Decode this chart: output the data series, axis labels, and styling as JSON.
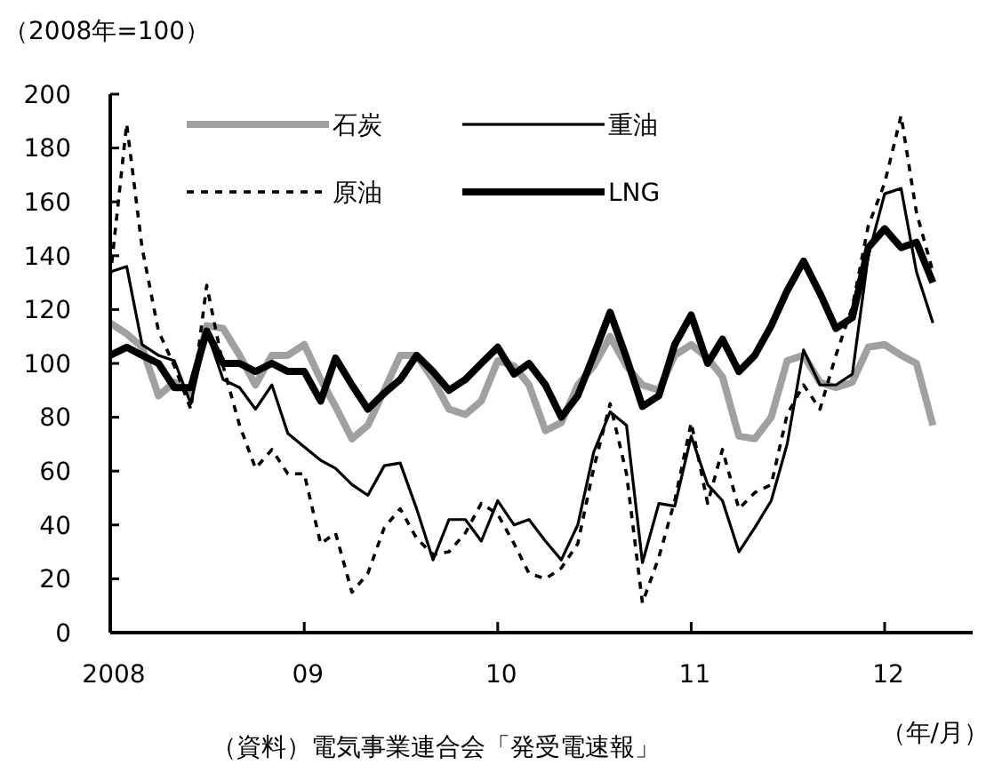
{
  "chart_data": {
    "type": "line",
    "ylabel": "（2008年=100）",
    "xlabel": "（年/月）",
    "annotations": [
      "（資料）電気事業連合会「発受電速報」"
    ],
    "x": [
      "2008-01",
      "2008-02",
      "2008-03",
      "2008-04",
      "2008-05",
      "2008-06",
      "2008-07",
      "2008-08",
      "2008-09",
      "2008-10",
      "2008-11",
      "2008-12",
      "2009-01",
      "2009-02",
      "2009-03",
      "2009-04",
      "2009-05",
      "2009-06",
      "2009-07",
      "2009-08",
      "2009-09",
      "2009-10",
      "2009-11",
      "2009-12",
      "2010-01",
      "2010-02",
      "2010-03",
      "2010-04",
      "2010-05",
      "2010-06",
      "2010-07",
      "2010-08",
      "2010-09",
      "2010-10",
      "2010-11",
      "2010-12",
      "2011-01",
      "2011-02",
      "2011-03",
      "2011-04",
      "2011-05",
      "2011-06",
      "2011-07",
      "2011-08",
      "2011-09",
      "2011-10",
      "2011-11",
      "2011-12",
      "2012-01",
      "2012-02",
      "2012-03",
      "2012-04"
    ],
    "xlim": [
      "2008-01",
      "2012-06-15"
    ],
    "xticks": [
      {
        "value": "2008-01",
        "label": "2008"
      },
      {
        "value": "2009-01",
        "label": "09"
      },
      {
        "value": "2010-01",
        "label": "10"
      },
      {
        "value": "2011-01",
        "label": "11"
      },
      {
        "value": "2012-01",
        "label": "12"
      }
    ],
    "ylim": [
      0,
      200
    ],
    "yticks": [
      0,
      20,
      40,
      60,
      80,
      100,
      120,
      140,
      160,
      180,
      200
    ],
    "grid": false,
    "legend": "top",
    "marker": "none",
    "series": [
      {
        "name": "石炭",
        "color": "#a0a0a0",
        "line_style": "solid",
        "values": [
          115,
          111,
          106,
          88,
          93,
          89,
          114,
          113,
          103,
          92,
          103,
          103,
          107,
          94,
          84,
          72,
          77,
          90,
          103,
          103,
          94,
          83,
          81,
          86,
          101,
          99,
          92,
          75,
          78,
          92,
          99,
          110,
          99,
          92,
          90,
          103,
          107,
          102,
          95,
          73,
          72,
          80,
          101,
          103,
          93,
          91,
          93,
          106,
          107,
          103,
          100,
          77
        ]
      },
      {
        "name": "重油",
        "color": "#000000",
        "line_style": "solid",
        "values": [
          134,
          136,
          107,
          103,
          101,
          85,
          112,
          94,
          91,
          83,
          92,
          74,
          69,
          64,
          61,
          55,
          51,
          62,
          63,
          46,
          27,
          42,
          42,
          34,
          49,
          40,
          42,
          34,
          27,
          40,
          67,
          82,
          77,
          26,
          48,
          47,
          73,
          55,
          49,
          30,
          39,
          49,
          70,
          105,
          92,
          92,
          96,
          140,
          163,
          165,
          134,
          115
        ]
      },
      {
        "name": "原油",
        "color": "#000000",
        "line_style": "dashed",
        "values": [
          132,
          189,
          143,
          112,
          99,
          83,
          129,
          99,
          77,
          61,
          68,
          59,
          59,
          33,
          37,
          15,
          22,
          39,
          46,
          35,
          29,
          30,
          37,
          48,
          44,
          33,
          22,
          20,
          24,
          33,
          61,
          85,
          59,
          11,
          28,
          49,
          78,
          48,
          68,
          46,
          52,
          55,
          81,
          92,
          83,
          103,
          121,
          151,
          167,
          192,
          156,
          134
        ]
      },
      {
        "name": "LNG",
        "color": "#000000",
        "line_style": "solid",
        "values": [
          103,
          106,
          103,
          100,
          91,
          91,
          112,
          100,
          100,
          97,
          100,
          97,
          97,
          86,
          102,
          92,
          83,
          89,
          94,
          103,
          97,
          90,
          94,
          100,
          106,
          96,
          100,
          92,
          80,
          88,
          103,
          119,
          102,
          84,
          88,
          107,
          118,
          100,
          109,
          97,
          103,
          114,
          127,
          138,
          126,
          113,
          117,
          143,
          150,
          143,
          145,
          130
        ]
      }
    ]
  }
}
